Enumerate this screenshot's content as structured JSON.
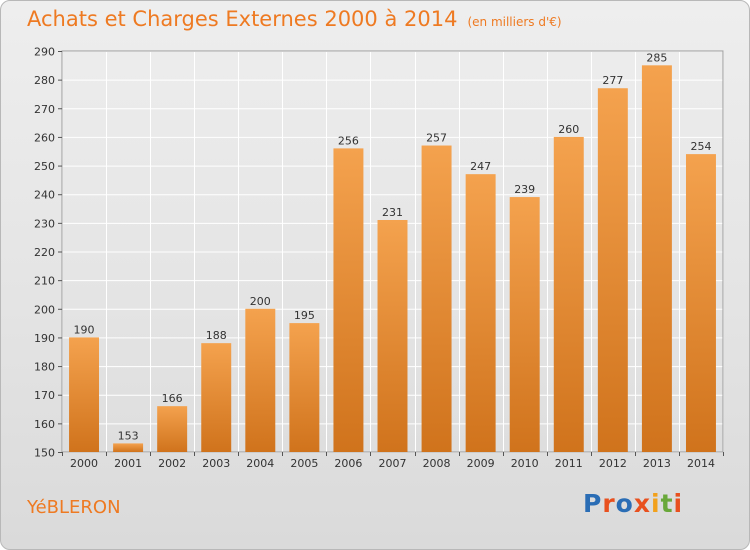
{
  "header": {
    "title": "Achats et Charges Externes 2000 à 2014",
    "unit": "(en milliers d'€)"
  },
  "footer": {
    "place": "YéBLERON",
    "logo": "Proxiti"
  },
  "colors": {
    "accent": "#ee7a22",
    "bar_top": "#f4a24e",
    "bar_bottom": "#d0731c",
    "logo_letters": [
      "#2a6db5",
      "#e8501e",
      "#2a6db5",
      "#e8501e",
      "#f2a11c",
      "#69a83a",
      "#e8501e"
    ]
  },
  "chart_data": {
    "type": "bar",
    "title": "Achats et Charges Externes 2000 à 2014",
    "subtitle": "(en milliers d'€)",
    "xlabel": "",
    "ylabel": "",
    "categories": [
      "2000",
      "2001",
      "2002",
      "2003",
      "2004",
      "2005",
      "2006",
      "2007",
      "2008",
      "2009",
      "2010",
      "2011",
      "2012",
      "2013",
      "2014"
    ],
    "values": [
      190,
      153,
      166,
      188,
      200,
      195,
      256,
      231,
      257,
      247,
      239,
      260,
      277,
      285,
      254
    ],
    "ylim": [
      150,
      290
    ],
    "yticks": [
      150,
      160,
      170,
      180,
      190,
      200,
      210,
      220,
      230,
      240,
      250,
      260,
      270,
      280,
      290
    ],
    "grid": true,
    "legend": "none"
  }
}
